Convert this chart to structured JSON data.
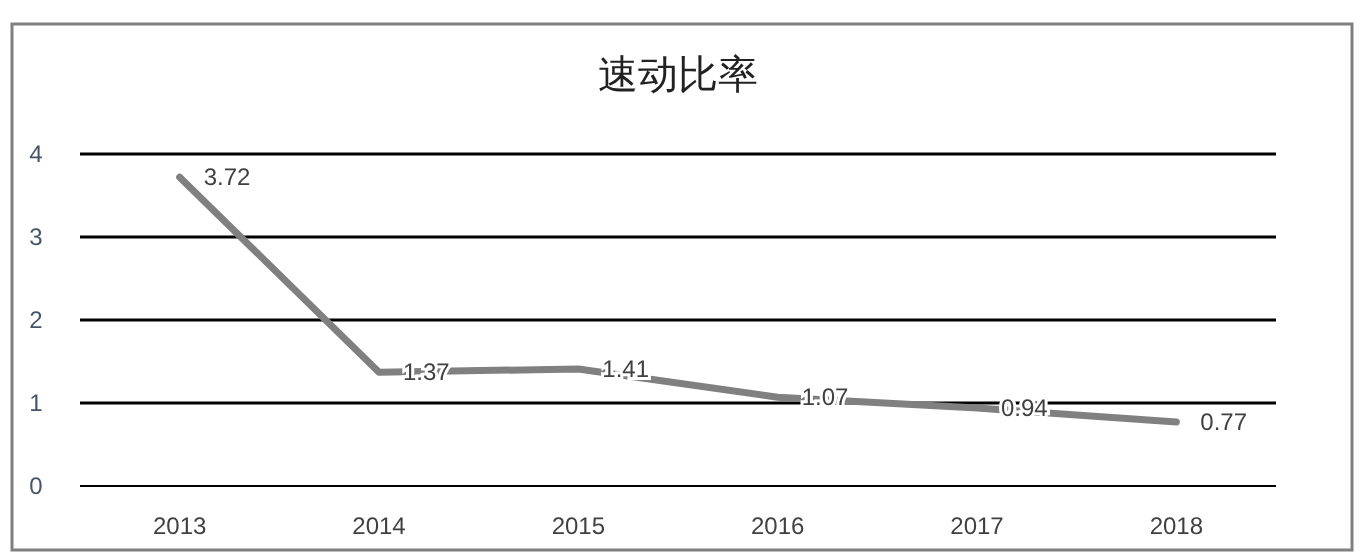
{
  "chart_data": {
    "type": "line",
    "title": "速动比率",
    "categories": [
      "2013",
      "2014",
      "2015",
      "2016",
      "2017",
      "2018"
    ],
    "series": [
      {
        "color": "#808080",
        "values": [
          3.72,
          1.37,
          1.41,
          1.07,
          0.94,
          0.77
        ]
      }
    ],
    "ylim": [
      0,
      4
    ],
    "yticks": [
      0,
      1,
      2,
      3,
      4
    ],
    "grid": "y",
    "data_labels": true,
    "marker": "none",
    "line_style": "solid"
  }
}
